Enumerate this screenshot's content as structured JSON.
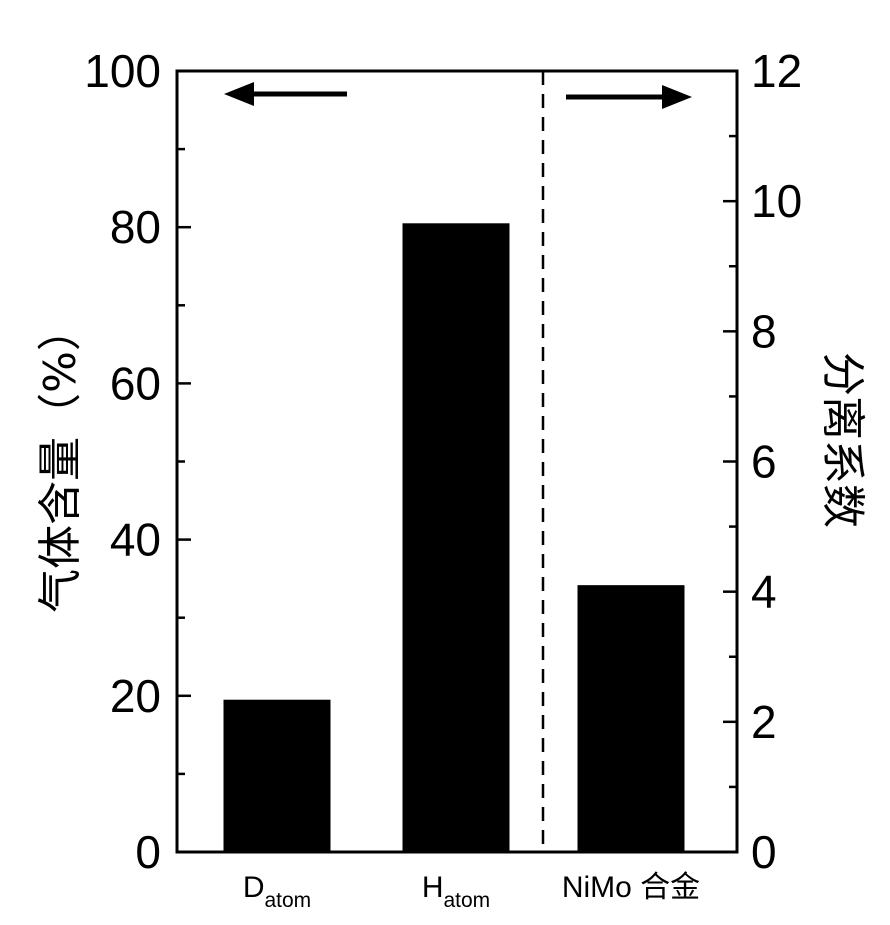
{
  "chart_data": {
    "type": "bar",
    "categories": [
      {
        "main": "D",
        "sub": "atom"
      },
      {
        "main": "H",
        "sub": "atom"
      },
      {
        "main": "NiMo 合金",
        "sub": ""
      }
    ],
    "series": [
      {
        "axis": "left",
        "values": [
          19.5,
          80.5,
          null
        ]
      },
      {
        "axis": "right",
        "values": [
          null,
          null,
          4.1
        ]
      }
    ],
    "left_axis": {
      "label": "气体含量（%）",
      "ylim": [
        0,
        100
      ],
      "ticks": [
        "0",
        "20",
        "40",
        "60",
        "80",
        "100"
      ]
    },
    "right_axis": {
      "label": "分离系数",
      "ylim": [
        0,
        12
      ],
      "ticks": [
        "0",
        "2",
        "4",
        "6",
        "8",
        "10",
        "12"
      ]
    },
    "annotations": {
      "left_arrow": "points to left axis",
      "right_arrow": "points to right axis",
      "divider": "dashed vertical line between H and NiMo"
    },
    "bar_color": "#000000"
  }
}
